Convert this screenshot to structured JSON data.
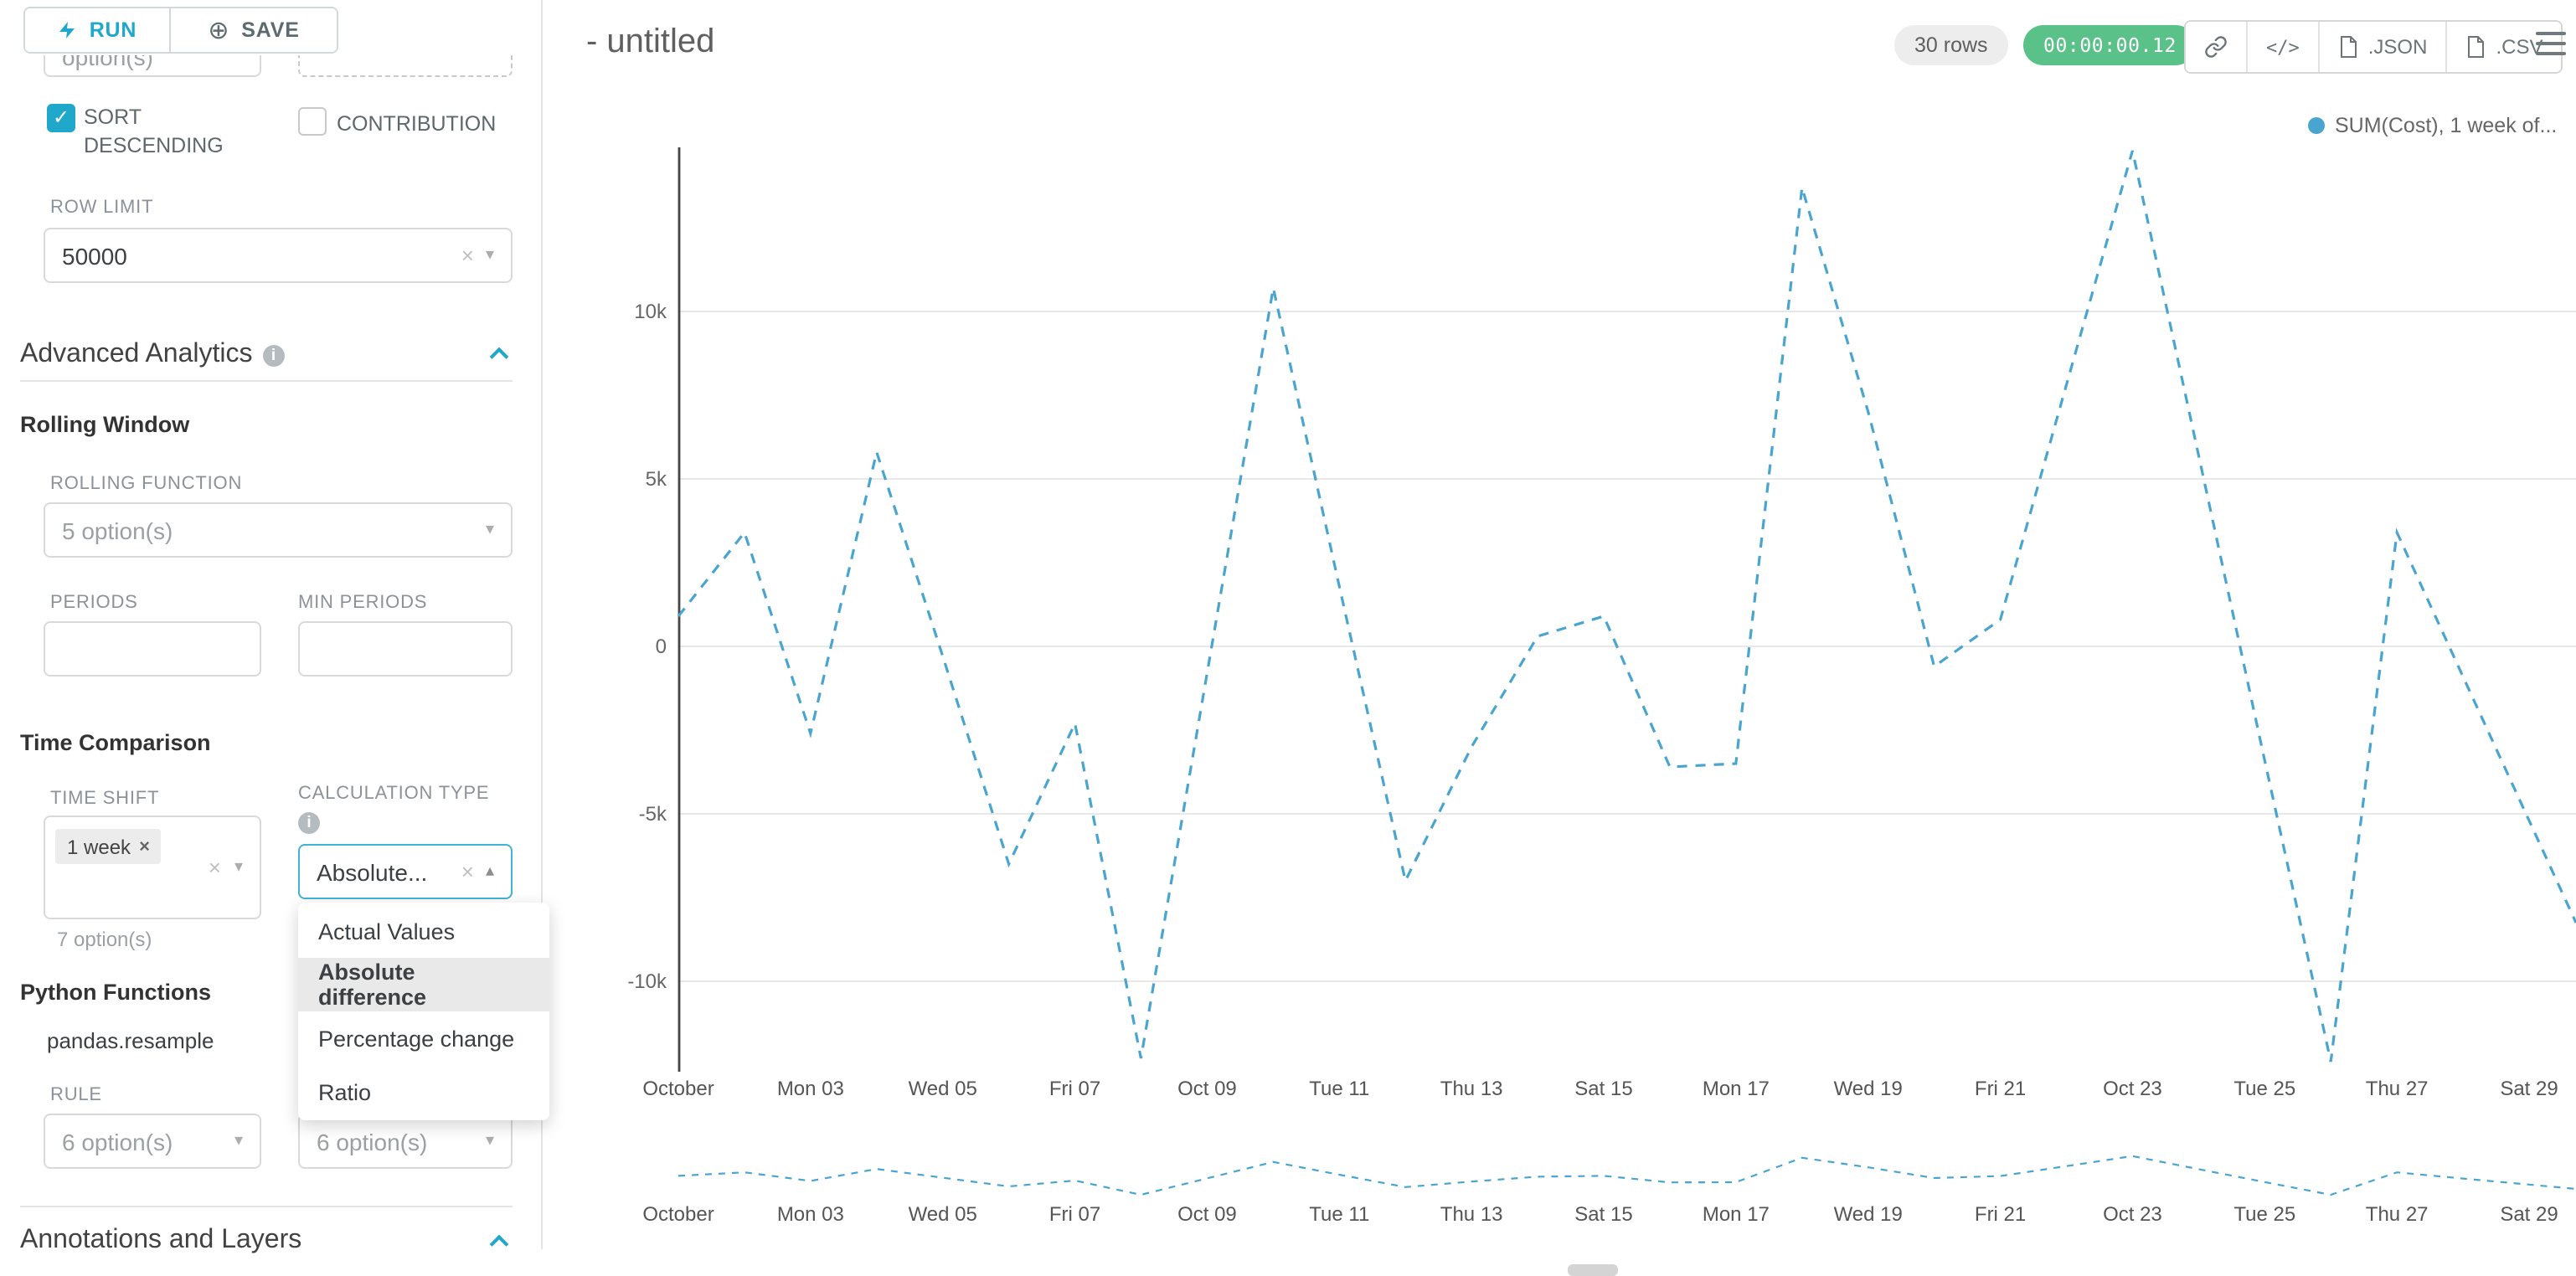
{
  "colors": {
    "accent": "#1fa8c9",
    "success": "#5ac189",
    "series": "#49a5cf"
  },
  "icons": {
    "close_glyph": "×",
    "caret_down_glyph": "▾",
    "caret_up_glyph": "▴",
    "check_glyph": "✓",
    "plus_circle_glyph": "⊕",
    "code_glyph": "</>",
    "info_glyph": "i"
  },
  "toolbar": {
    "run_label": "RUN",
    "save_label": "SAVE"
  },
  "sidebar": {
    "partial_select_value": "option(s)",
    "sort_descending": {
      "label": "SORT DESCENDING",
      "checked": true
    },
    "contribution": {
      "label": "CONTRIBUTION",
      "checked": false
    },
    "row_limit": {
      "label": "ROW LIMIT",
      "value": "50000"
    },
    "advanced_analytics": {
      "title": "Advanced Analytics"
    },
    "rolling_window": {
      "title": "Rolling Window",
      "rolling_function_label": "ROLLING FUNCTION",
      "rolling_function_value": "5 option(s)",
      "periods_label": "PERIODS",
      "min_periods_label": "MIN PERIODS"
    },
    "time_comparison": {
      "title": "Time Comparison",
      "time_shift_label": "TIME SHIFT",
      "time_shift_tag": "1 week",
      "time_shift_helper": "7 option(s)",
      "calculation_type_label": "CALCULATION TYPE",
      "calculation_type_value": "Absolute...",
      "dropdown": {
        "options": [
          "Actual Values",
          "Absolute difference",
          "Percentage change",
          "Ratio"
        ],
        "highlighted": "Absolute difference"
      }
    },
    "python_functions": {
      "title": "Python Functions",
      "subtitle": "pandas.resample",
      "rule_label": "RULE",
      "rule_value": "6 option(s)",
      "method_value": "6 option(s)"
    },
    "annotations": {
      "title": "Annotations and Layers"
    }
  },
  "header": {
    "title": "- untitled",
    "rows_badge": "30 rows",
    "timer": "00:00:00.12",
    "json_label": ".JSON",
    "csv_label": ".CSV"
  },
  "chart_data": {
    "type": "line",
    "title": "",
    "legend_label": "SUM(Cost), 1 week of...",
    "legend_position": "top-right",
    "grid": true,
    "xlabel": "",
    "ylabel": "",
    "ylim": [
      -13000,
      15000
    ],
    "y_tick_labels": [
      "10k",
      "5k",
      "0",
      "-5k",
      "-10k"
    ],
    "y_tick_values": [
      10000,
      5000,
      0,
      -5000,
      -10000
    ],
    "x_tick_labels": [
      "October",
      "Mon 03",
      "Wed 05",
      "Fri 07",
      "Oct 09",
      "Tue 11",
      "Thu 13",
      "Sat 15",
      "Mon 17",
      "Wed 19",
      "Fri 21",
      "Oct 23",
      "Tue 25",
      "Thu 27",
      "Sat 29"
    ],
    "series": [
      {
        "name": "SUM(Cost), 1 week offset",
        "color": "#49a5cf",
        "style": "dashed",
        "x": [
          "Oct 01",
          "Oct 02",
          "Oct 03",
          "Oct 04",
          "Oct 05",
          "Oct 06",
          "Oct 07",
          "Oct 08",
          "Oct 09",
          "Oct 10",
          "Oct 11",
          "Oct 12",
          "Oct 13",
          "Oct 14",
          "Oct 15",
          "Oct 16",
          "Oct 17",
          "Oct 18",
          "Oct 19",
          "Oct 20",
          "Oct 21",
          "Oct 22",
          "Oct 23",
          "Oct 24",
          "Oct 25",
          "Oct 26",
          "Oct 27",
          "Oct 28",
          "Oct 29"
        ],
        "values": [
          900,
          3400,
          -2600,
          5800,
          -300,
          -6500,
          -2300,
          -12300,
          -800,
          10700,
          1800,
          -7000,
          -3000,
          300,
          900,
          -3600,
          -3500,
          13700,
          7000,
          -600,
          800,
          7800,
          14800,
          5700,
          -3400,
          -12400,
          3400,
          -900,
          -5200
        ]
      }
    ],
    "mini_chart": "same series shown compressed as context strip below main chart"
  }
}
